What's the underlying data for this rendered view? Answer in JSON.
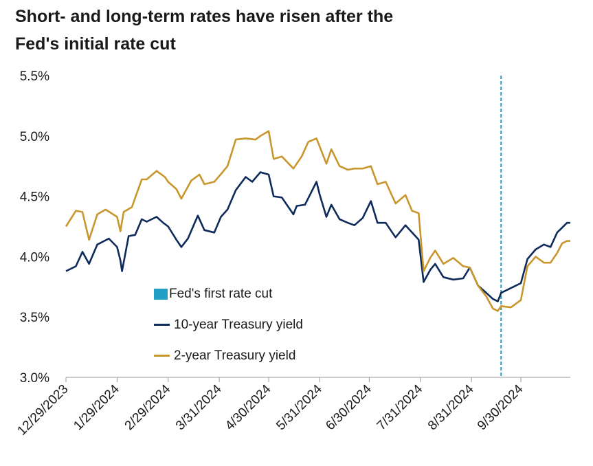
{
  "title": {
    "line1": "Short- and long-term rates have risen after the",
    "line2": "Fed's initial rate cut"
  },
  "colors": {
    "ten_year": "#0d2a5a",
    "two_year": "#c8962c",
    "rate_cut": "#1f9fc6",
    "axis": "#999999"
  },
  "chart_data": {
    "type": "line",
    "y_ticks": [
      "5.5%",
      "5.0%",
      "4.5%",
      "4.0%",
      "3.5%",
      "3.0%"
    ],
    "ylim": [
      3.0,
      5.5
    ],
    "x_ticks": [
      "12/29/2023",
      "1/29/2024",
      "2/29/2024",
      "3/31/2024",
      "4/30/2024",
      "5/31/2024",
      "6/30/2024",
      "7/31/2024",
      "8/31/2024",
      "9/30/2024"
    ],
    "xlim": [
      "2023-12-29",
      "2024-10-30"
    ],
    "grid": false,
    "legend_position": "bottom-left",
    "annotations": [
      {
        "type": "vertical-dashed-line",
        "x": "2024-09-18",
        "label": "Fed's first rate cut"
      }
    ],
    "series": [
      {
        "name": "10-year Treasury yield",
        "points": [
          [
            "2023-12-29",
            3.88
          ],
          [
            "2024-01-04",
            3.92
          ],
          [
            "2024-01-08",
            4.04
          ],
          [
            "2024-01-12",
            3.94
          ],
          [
            "2024-01-17",
            4.1
          ],
          [
            "2024-01-24",
            4.15
          ],
          [
            "2024-01-29",
            4.08
          ],
          [
            "2024-01-31",
            3.97
          ],
          [
            "2024-02-01",
            3.88
          ],
          [
            "2024-02-05",
            4.17
          ],
          [
            "2024-02-09",
            4.18
          ],
          [
            "2024-02-13",
            4.31
          ],
          [
            "2024-02-16",
            4.29
          ],
          [
            "2024-02-22",
            4.33
          ],
          [
            "2024-02-26",
            4.28
          ],
          [
            "2024-02-29",
            4.25
          ],
          [
            "2024-03-05",
            4.14
          ],
          [
            "2024-03-08",
            4.08
          ],
          [
            "2024-03-12",
            4.15
          ],
          [
            "2024-03-18",
            4.34
          ],
          [
            "2024-03-22",
            4.22
          ],
          [
            "2024-03-28",
            4.2
          ],
          [
            "2024-04-01",
            4.33
          ],
          [
            "2024-04-05",
            4.39
          ],
          [
            "2024-04-10",
            4.55
          ],
          [
            "2024-04-16",
            4.66
          ],
          [
            "2024-04-20",
            4.62
          ],
          [
            "2024-04-25",
            4.7
          ],
          [
            "2024-04-30",
            4.68
          ],
          [
            "2024-05-03",
            4.5
          ],
          [
            "2024-05-08",
            4.49
          ],
          [
            "2024-05-15",
            4.35
          ],
          [
            "2024-05-17",
            4.42
          ],
          [
            "2024-05-22",
            4.43
          ],
          [
            "2024-05-29",
            4.62
          ],
          [
            "2024-05-31",
            4.51
          ],
          [
            "2024-06-04",
            4.33
          ],
          [
            "2024-06-07",
            4.43
          ],
          [
            "2024-06-12",
            4.31
          ],
          [
            "2024-06-17",
            4.28
          ],
          [
            "2024-06-21",
            4.26
          ],
          [
            "2024-06-26",
            4.32
          ],
          [
            "2024-07-01",
            4.46
          ],
          [
            "2024-07-05",
            4.28
          ],
          [
            "2024-07-10",
            4.28
          ],
          [
            "2024-07-16",
            4.16
          ],
          [
            "2024-07-22",
            4.26
          ],
          [
            "2024-07-26",
            4.2
          ],
          [
            "2024-07-30",
            4.14
          ],
          [
            "2024-08-02",
            3.79
          ],
          [
            "2024-08-06",
            3.89
          ],
          [
            "2024-08-09",
            3.94
          ],
          [
            "2024-08-14",
            3.83
          ],
          [
            "2024-08-20",
            3.81
          ],
          [
            "2024-08-26",
            3.82
          ],
          [
            "2024-08-30",
            3.91
          ],
          [
            "2024-09-04",
            3.76
          ],
          [
            "2024-09-09",
            3.7
          ],
          [
            "2024-09-13",
            3.65
          ],
          [
            "2024-09-16",
            3.63
          ],
          [
            "2024-09-18",
            3.7
          ],
          [
            "2024-09-24",
            3.74
          ],
          [
            "2024-09-30",
            3.78
          ],
          [
            "2024-10-04",
            3.98
          ],
          [
            "2024-10-09",
            4.06
          ],
          [
            "2024-10-14",
            4.1
          ],
          [
            "2024-10-18",
            4.08
          ],
          [
            "2024-10-22",
            4.2
          ],
          [
            "2024-10-25",
            4.24
          ],
          [
            "2024-10-28",
            4.28
          ],
          [
            "2024-10-30",
            4.28
          ]
        ]
      },
      {
        "name": "2-year Treasury yield",
        "points": [
          [
            "2023-12-29",
            4.25
          ],
          [
            "2024-01-04",
            4.38
          ],
          [
            "2024-01-08",
            4.37
          ],
          [
            "2024-01-12",
            4.14
          ],
          [
            "2024-01-17",
            4.35
          ],
          [
            "2024-01-22",
            4.39
          ],
          [
            "2024-01-29",
            4.33
          ],
          [
            "2024-01-31",
            4.21
          ],
          [
            "2024-02-02",
            4.37
          ],
          [
            "2024-02-07",
            4.41
          ],
          [
            "2024-02-13",
            4.64
          ],
          [
            "2024-02-16",
            4.64
          ],
          [
            "2024-02-22",
            4.71
          ],
          [
            "2024-02-27",
            4.66
          ],
          [
            "2024-02-29",
            4.62
          ],
          [
            "2024-03-05",
            4.56
          ],
          [
            "2024-03-08",
            4.48
          ],
          [
            "2024-03-14",
            4.63
          ],
          [
            "2024-03-19",
            4.68
          ],
          [
            "2024-03-22",
            4.6
          ],
          [
            "2024-03-28",
            4.62
          ],
          [
            "2024-04-02",
            4.7
          ],
          [
            "2024-04-05",
            4.75
          ],
          [
            "2024-04-10",
            4.97
          ],
          [
            "2024-04-16",
            4.98
          ],
          [
            "2024-04-22",
            4.97
          ],
          [
            "2024-04-25",
            5.0
          ],
          [
            "2024-04-30",
            5.04
          ],
          [
            "2024-05-03",
            4.81
          ],
          [
            "2024-05-08",
            4.83
          ],
          [
            "2024-05-15",
            4.73
          ],
          [
            "2024-05-20",
            4.83
          ],
          [
            "2024-05-24",
            4.95
          ],
          [
            "2024-05-29",
            4.98
          ],
          [
            "2024-06-04",
            4.77
          ],
          [
            "2024-06-07",
            4.89
          ],
          [
            "2024-06-12",
            4.75
          ],
          [
            "2024-06-17",
            4.72
          ],
          [
            "2024-06-21",
            4.73
          ],
          [
            "2024-06-26",
            4.73
          ],
          [
            "2024-07-01",
            4.75
          ],
          [
            "2024-07-05",
            4.6
          ],
          [
            "2024-07-10",
            4.62
          ],
          [
            "2024-07-16",
            4.44
          ],
          [
            "2024-07-22",
            4.51
          ],
          [
            "2024-07-26",
            4.38
          ],
          [
            "2024-07-30",
            4.36
          ],
          [
            "2024-08-02",
            3.88
          ],
          [
            "2024-08-06",
            3.99
          ],
          [
            "2024-08-09",
            4.05
          ],
          [
            "2024-08-14",
            3.94
          ],
          [
            "2024-08-20",
            3.99
          ],
          [
            "2024-08-26",
            3.92
          ],
          [
            "2024-08-30",
            3.91
          ],
          [
            "2024-09-04",
            3.76
          ],
          [
            "2024-09-09",
            3.67
          ],
          [
            "2024-09-13",
            3.57
          ],
          [
            "2024-09-16",
            3.55
          ],
          [
            "2024-09-18",
            3.59
          ],
          [
            "2024-09-24",
            3.58
          ],
          [
            "2024-09-30",
            3.64
          ],
          [
            "2024-10-04",
            3.92
          ],
          [
            "2024-10-09",
            4.0
          ],
          [
            "2024-10-14",
            3.95
          ],
          [
            "2024-10-18",
            3.95
          ],
          [
            "2024-10-22",
            4.03
          ],
          [
            "2024-10-25",
            4.11
          ],
          [
            "2024-10-28",
            4.13
          ],
          [
            "2024-10-30",
            4.13
          ]
        ]
      }
    ]
  }
}
